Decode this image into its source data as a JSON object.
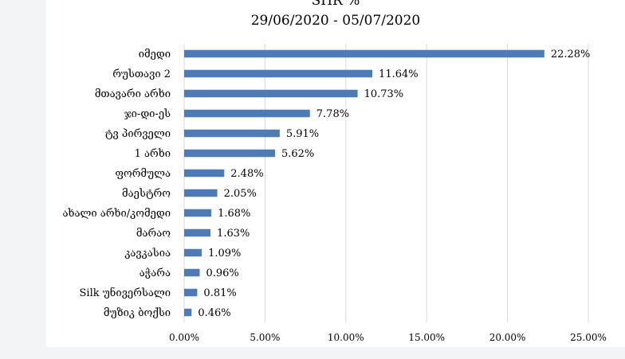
{
  "chart_data": {
    "type": "bar",
    "orientation": "horizontal",
    "title": "SHR %",
    "subtitle": "29/06/2020 - 05/07/2020",
    "categories": [
      "იმედი",
      "რუსთავი 2",
      "მთავარი არხი",
      "ჯი-დი-ეს",
      "ტვ პირველი",
      "1 არხი",
      "ფორმულა",
      "მაესტრო",
      "ახალი არხი/კომედი",
      "მარაო",
      "კავკასია",
      "აჭარა",
      "Silk უნივერსალი",
      "მუზიკ ბოქსი"
    ],
    "values": [
      22.28,
      11.64,
      10.73,
      7.78,
      5.91,
      5.62,
      2.48,
      2.05,
      1.68,
      1.63,
      1.09,
      0.96,
      0.81,
      0.46
    ],
    "value_labels": [
      "22.28%",
      "11.64%",
      "10.73%",
      "7.78%",
      "5.91%",
      "5.62%",
      "2.48%",
      "2.05%",
      "1.68%",
      "1.63%",
      "1.09%",
      "0.96%",
      "0.81%",
      "0.46%"
    ],
    "xlim": [
      0,
      25
    ],
    "x_ticks": [
      0,
      5,
      10,
      15,
      20,
      25
    ],
    "x_tick_labels": [
      "0.00%",
      "5.00%",
      "10.00%",
      "15.00%",
      "20.00%",
      "25.00%"
    ],
    "grid": true,
    "legend": false,
    "colors": {
      "bar": "#4e7ab5",
      "grid": "#d9d9d9",
      "background": "#ffffff"
    }
  }
}
